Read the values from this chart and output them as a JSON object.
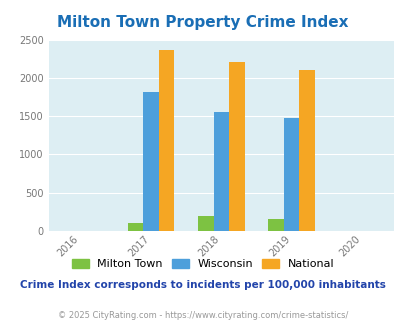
{
  "title": "Milton Town Property Crime Index",
  "categories": [
    "Milton Town",
    "Wisconsin",
    "National"
  ],
  "data": {
    "Milton Town": {
      "2017": 105,
      "2018": 195,
      "2019": 160
    },
    "Wisconsin": {
      "2017": 1810,
      "2018": 1555,
      "2019": 1475
    },
    "National": {
      "2017": 2360,
      "2018": 2205,
      "2019": 2100
    }
  },
  "bar_colors": {
    "Milton Town": "#7dc242",
    "Wisconsin": "#4d9fdb",
    "National": "#f5a623"
  },
  "bar_width": 0.22,
  "ylim": [
    0,
    2500
  ],
  "yticks": [
    0,
    500,
    1000,
    1500,
    2000,
    2500
  ],
  "plot_years": [
    2017,
    2018,
    2019
  ],
  "x_tick_years": [
    2016,
    2017,
    2018,
    2019,
    2020
  ],
  "background_color": "#ddeef3",
  "title_color": "#1a6eb5",
  "title_fontsize": 11,
  "subtitle": "Crime Index corresponds to incidents per 100,000 inhabitants",
  "footer": "© 2025 CityRating.com - https://www.cityrating.com/crime-statistics/",
  "subtitle_color": "#2244aa",
  "footer_color": "#999999"
}
